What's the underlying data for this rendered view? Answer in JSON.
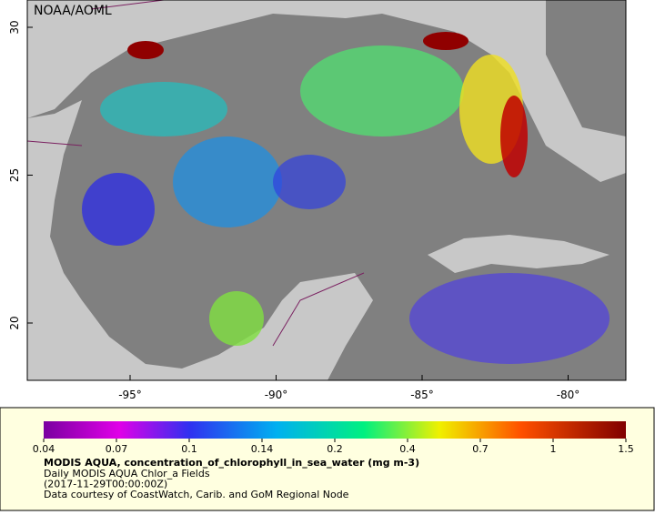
{
  "map": {
    "source": "NOAA/AOML",
    "lat_ticks": [
      30,
      25,
      20
    ],
    "lon_ticks": [
      {
        "value": -95,
        "label": "-95°"
      },
      {
        "value": -90,
        "label": "-90°"
      },
      {
        "value": -85,
        "label": "-85°"
      },
      {
        "value": -80,
        "label": "-80°"
      }
    ]
  },
  "legend": {
    "ticks": [
      0.04,
      0.07,
      0.1,
      0.14,
      0.2,
      0.4,
      0.7,
      1,
      1.5
    ],
    "title": "MODIS AQUA, concentration_of_chlorophyll_in_sea_water (mg m-3)",
    "lines": [
      "Daily MODIS AQUA Chlor_a Fields",
      "(2017-11-29T00:00:00Z)",
      "Data courtesy of CoastWatch, Carib. and GoM Regional Node"
    ]
  }
}
